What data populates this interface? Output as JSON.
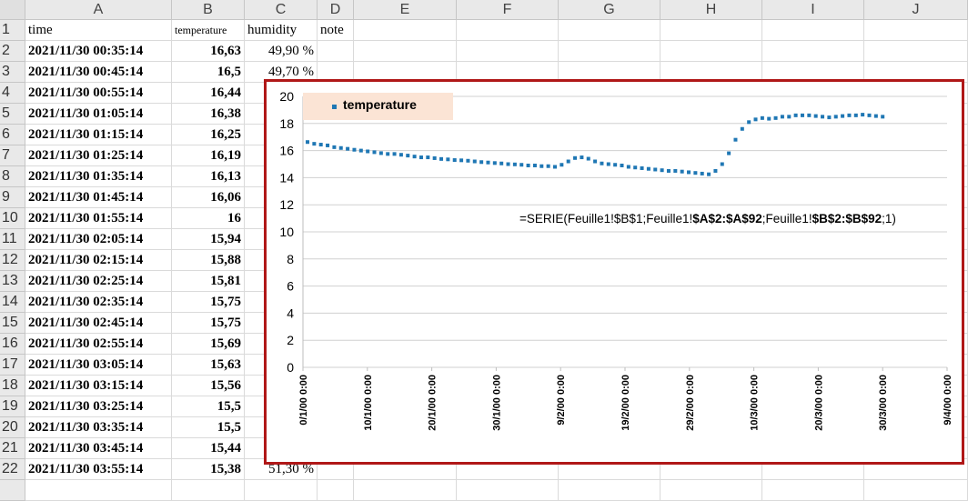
{
  "columns": [
    "A",
    "B",
    "C",
    "D",
    "E",
    "F",
    "G",
    "H",
    "I",
    "J"
  ],
  "rows": [
    {
      "n": "1",
      "a": "time",
      "b": "temperature",
      "c": "humidity",
      "d": "note"
    },
    {
      "n": "2",
      "a": "2021/11/30 00:35:14",
      "b": "16,63",
      "c": "49,90 %"
    },
    {
      "n": "3",
      "a": "2021/11/30 00:45:14",
      "b": "16,5",
      "c": "49,70 %"
    },
    {
      "n": "4",
      "a": "2021/11/30 00:55:14",
      "b": "16,44"
    },
    {
      "n": "5",
      "a": "2021/11/30 01:05:14",
      "b": "16,38"
    },
    {
      "n": "6",
      "a": "2021/11/30 01:15:14",
      "b": "16,25"
    },
    {
      "n": "7",
      "a": "2021/11/30 01:25:14",
      "b": "16,19"
    },
    {
      "n": "8",
      "a": "2021/11/30 01:35:14",
      "b": "16,13"
    },
    {
      "n": "9",
      "a": "2021/11/30 01:45:14",
      "b": "16,06"
    },
    {
      "n": "10",
      "a": "2021/11/30 01:55:14",
      "b": "16"
    },
    {
      "n": "11",
      "a": "2021/11/30 02:05:14",
      "b": "15,94"
    },
    {
      "n": "12",
      "a": "2021/11/30 02:15:14",
      "b": "15,88"
    },
    {
      "n": "13",
      "a": "2021/11/30 02:25:14",
      "b": "15,81"
    },
    {
      "n": "14",
      "a": "2021/11/30 02:35:14",
      "b": "15,75"
    },
    {
      "n": "15",
      "a": "2021/11/30 02:45:14",
      "b": "15,75"
    },
    {
      "n": "16",
      "a": "2021/11/30 02:55:14",
      "b": "15,69"
    },
    {
      "n": "17",
      "a": "2021/11/30 03:05:14",
      "b": "15,63"
    },
    {
      "n": "18",
      "a": "2021/11/30 03:15:14",
      "b": "15,56"
    },
    {
      "n": "19",
      "a": "2021/11/30 03:25:14",
      "b": "15,5"
    },
    {
      "n": "20",
      "a": "2021/11/30 03:35:14",
      "b": "15,5"
    },
    {
      "n": "21",
      "a": "2021/11/30 03:45:14",
      "b": "15,44"
    },
    {
      "n": "22",
      "a": "2021/11/30 03:55:14",
      "b": "15,38",
      "c": "51,30 %"
    }
  ],
  "chart": {
    "formula_prefix": "=SERIE(Feuille1!$B$1;Feuille1!",
    "formula_bold1": "$A$2:$A$92",
    "formula_mid": ";Feuille1!",
    "formula_bold2": "$B$2:$B$92",
    "formula_suffix": ";1)"
  },
  "chart_data": {
    "type": "scatter",
    "series": [
      {
        "name": "temperature",
        "color": "#1f77b4",
        "values": [
          16.63,
          16.5,
          16.44,
          16.38,
          16.25,
          16.19,
          16.13,
          16.06,
          16.0,
          15.94,
          15.88,
          15.81,
          15.75,
          15.75,
          15.69,
          15.63,
          15.56,
          15.5,
          15.5,
          15.44,
          15.38,
          15.35,
          15.3,
          15.28,
          15.25,
          15.2,
          15.15,
          15.12,
          15.08,
          15.05,
          15.0,
          14.98,
          14.95,
          14.9,
          14.9,
          14.85,
          14.85,
          14.8,
          14.95,
          15.2,
          15.45,
          15.5,
          15.4,
          15.2,
          15.05,
          15.0,
          14.95,
          14.9,
          14.8,
          14.75,
          14.7,
          14.65,
          14.6,
          14.55,
          14.5,
          14.5,
          14.45,
          14.4,
          14.35,
          14.3,
          14.25,
          14.5,
          15.0,
          15.8,
          16.8,
          17.6,
          18.1,
          18.3,
          18.4,
          18.35,
          18.4,
          18.5,
          18.5,
          18.6,
          18.6,
          18.6,
          18.55,
          18.5,
          18.45,
          18.5,
          18.55,
          18.6,
          18.6,
          18.65,
          18.6,
          18.55,
          18.5
        ]
      }
    ],
    "x_tick_labels": [
      "0/1/00 0:00",
      "10/1/00 0:00",
      "20/1/00 0:00",
      "30/1/00 0:00",
      "9/2/00 0:00",
      "19/2/00 0:00",
      "29/2/00 0:00",
      "10/3/00 0:00",
      "20/3/00 0:00",
      "30/3/00 0:00",
      "9/4/00 0:00"
    ],
    "y_ticks": [
      "0",
      "2",
      "4",
      "6",
      "8",
      "10",
      "12",
      "14",
      "16",
      "18",
      "20"
    ],
    "ylim": [
      0,
      20
    ],
    "legend": "top-left",
    "grid": true
  }
}
